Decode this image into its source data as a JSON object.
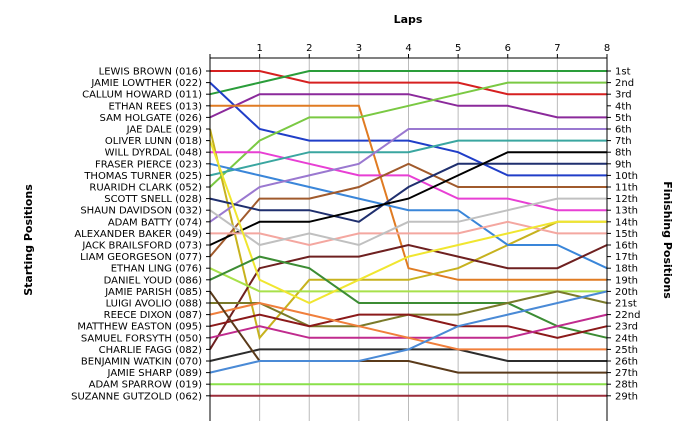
{
  "chart_data": {
    "type": "line",
    "title": "",
    "xlabel": "Laps",
    "ylabel_left": "Starting Positions",
    "ylabel_right": "Finishing Positions",
    "x": [
      0,
      1,
      2,
      3,
      4,
      5,
      6,
      7,
      8
    ],
    "x_tick_labels": [
      "1",
      "2",
      "3",
      "4",
      "5",
      "6",
      "7",
      "8"
    ],
    "y_range": [
      1,
      29
    ],
    "grid": "vertical",
    "legend": "none",
    "drivers": [
      "LEWIS BROWN (016)",
      "JAMIE LOWTHER (022)",
      "CALLUM HOWARD (011)",
      "ETHAN REES (013)",
      "SAM HOLGATE (026)",
      "JAE DALE (029)",
      "OLIVER LUNN (018)",
      "WILL DYRDAL (048)",
      "FRASER PIERCE (023)",
      "THOMAS TURNER (025)",
      "RUARIDH CLARK (052)",
      "SCOTT SNELL (028)",
      "SHAUN DAVIDSON (032)",
      "ADAM BATTY (074)",
      "ALEXANDER BAKER (049)",
      "JACK BRAILSFORD (073)",
      "LIAM GEORGESON (077)",
      "ETHAN LING (076)",
      "DANIEL YOUD (086)",
      "JAMIE PARISH (085)",
      "LUIGI AVOLIO (088)",
      "REECE DIXON (087)",
      "MATTHEW EASTON (095)",
      "SAMUEL FORSYTH (050)",
      "CHARLIE FAGG (082)",
      "BENJAMIN WATKIN (070)",
      "JAMIE SHARP (089)",
      "ADAM SPARROW (019)",
      "SUZANNE GUTZOLD (062)"
    ],
    "finish_labels": [
      "1st",
      "2nd",
      "3rd",
      "4th",
      "5th",
      "6th",
      "7th",
      "8th",
      "9th",
      "10th",
      "11th",
      "12th",
      "13th",
      "14th",
      "15th",
      "16th",
      "17th",
      "18th",
      "19th",
      "20th",
      "21st",
      "22nd",
      "23rd",
      "24th",
      "25th",
      "26th",
      "27th",
      "28th",
      "29th"
    ],
    "series": [
      {
        "color": "#d62020",
        "values": [
          1,
          1,
          2,
          2,
          2,
          2,
          3,
          3,
          3
        ]
      },
      {
        "color": "#2a9d3a",
        "values": [
          3,
          2,
          1,
          1,
          1,
          1,
          1,
          1,
          1
        ]
      },
      {
        "color": "#203ec8",
        "values": [
          2,
          6,
          7,
          7,
          7,
          8,
          10,
          10,
          10
        ]
      },
      {
        "color": "#8b2a9b",
        "values": [
          5,
          3,
          3,
          3,
          3,
          4,
          4,
          5,
          5
        ]
      },
      {
        "color": "#e07b22",
        "values": [
          4,
          4,
          4,
          4,
          18,
          19,
          19,
          19,
          19
        ]
      },
      {
        "color": "#c7b21e",
        "values": [
          6,
          24,
          19,
          19,
          19,
          18,
          16,
          14,
          14
        ]
      },
      {
        "color": "#7ac943",
        "values": [
          11,
          7,
          5,
          5,
          4,
          3,
          2,
          2,
          2
        ]
      },
      {
        "color": "#e83fd4",
        "values": [
          8,
          8,
          9,
          10,
          10,
          12,
          12,
          13,
          13
        ]
      },
      {
        "color": "#3aa6a0",
        "values": [
          10,
          9,
          8,
          8,
          8,
          7,
          7,
          7,
          7
        ]
      },
      {
        "color": "#3a86d9",
        "values": [
          9,
          10,
          11,
          12,
          13,
          13,
          16,
          16,
          18
        ]
      },
      {
        "color": "#9a78d0",
        "values": [
          14,
          11,
          10,
          9,
          6,
          6,
          6,
          6,
          6
        ]
      },
      {
        "color": "#a05a2c",
        "values": [
          17,
          12,
          12,
          11,
          9,
          11,
          11,
          11,
          11
        ]
      },
      {
        "color": "#1f2f6e",
        "values": [
          12,
          13,
          13,
          14,
          11,
          9,
          9,
          9,
          9
        ]
      },
      {
        "color": "#000000",
        "values": [
          16,
          14,
          14,
          13,
          12,
          10,
          8,
          8,
          8
        ]
      },
      {
        "color": "#f4a7a0",
        "values": [
          15,
          15,
          16,
          15,
          15,
          15,
          14,
          15,
          15
        ]
      },
      {
        "color": "#c0c0c0",
        "values": [
          13,
          16,
          15,
          16,
          14,
          14,
          13,
          12,
          12
        ]
      },
      {
        "color": "#6e2020",
        "values": [
          25,
          18,
          17,
          17,
          16,
          17,
          18,
          18,
          16
        ]
      },
      {
        "color": "#a8e14b",
        "values": [
          18,
          20,
          20,
          20,
          20,
          20,
          20,
          20,
          20
        ]
      },
      {
        "color": "#f0e630",
        "values": [
          7,
          19,
          21,
          19,
          17,
          16,
          15,
          14,
          14
        ]
      },
      {
        "color": "#3c8c34",
        "values": [
          19,
          17,
          18,
          21,
          21,
          21,
          21,
          23,
          24
        ]
      },
      {
        "color": "#7a7a2a",
        "values": [
          21,
          21,
          23,
          23,
          22,
          22,
          21,
          20,
          21
        ]
      },
      {
        "color": "#8b1a1a",
        "values": [
          23,
          22,
          23,
          22,
          22,
          23,
          23,
          24,
          23
        ]
      },
      {
        "color": "#c02b8e",
        "values": [
          24,
          23,
          24,
          24,
          24,
          24,
          24,
          23,
          22
        ]
      },
      {
        "color": "#2c2c2c",
        "values": [
          26,
          25,
          25,
          25,
          25,
          25,
          26,
          26,
          26
        ]
      },
      {
        "color": "#f07f3c",
        "values": [
          22,
          21,
          22,
          23,
          24,
          25,
          25,
          25,
          25
        ]
      },
      {
        "color": "#5a3a1a",
        "values": [
          20,
          26,
          26,
          26,
          26,
          27,
          27,
          27,
          27
        ]
      },
      {
        "color": "#4a8ad6",
        "values": [
          27,
          26,
          26,
          26,
          25,
          23,
          22,
          21,
          20
        ]
      },
      {
        "color": "#8ae04a",
        "values": [
          28,
          28,
          28,
          28,
          28,
          28,
          28,
          28,
          28
        ]
      },
      {
        "color": "#9b2d3a",
        "values": [
          29,
          29,
          29,
          29,
          29,
          29,
          29,
          29,
          29
        ]
      }
    ]
  }
}
